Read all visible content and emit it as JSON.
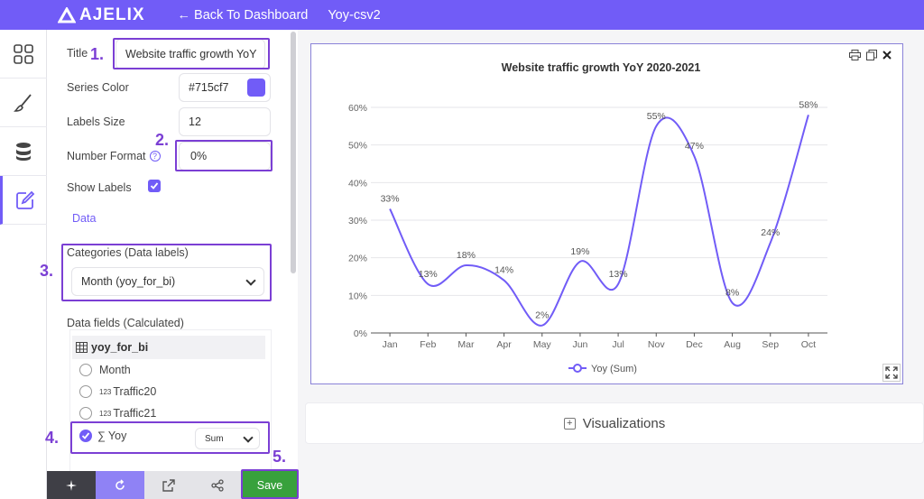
{
  "header": {
    "logo_text": "AJELIX",
    "back_label": "← Back To Dashboard",
    "file_name": "Yoy-csv2"
  },
  "rail": {
    "items": [
      {
        "icon": "grid-icon"
      },
      {
        "icon": "brush-icon"
      },
      {
        "icon": "database-icon"
      },
      {
        "icon": "edit-icon"
      }
    ]
  },
  "settings": {
    "title_label": "Title",
    "title_value": "Website traffic growth YoY",
    "series_color_label": "Series Color",
    "series_color_value": "#715cf7",
    "labels_size_label": "Labels Size",
    "labels_size_value": "12",
    "number_format_label": "Number Format",
    "number_format_value": "0%",
    "show_labels_label": "Show Labels",
    "data_tab_label": "Data",
    "categories_label": "Categories (Data labels)",
    "categories_value": "Month (yoy_for_bi)",
    "data_fields_label": "Data fields (Calculated)",
    "table_name": "yoy_for_bi",
    "fields": [
      {
        "prefix": "",
        "name": "Month"
      },
      {
        "prefix": "123",
        "name": "Traffic20"
      },
      {
        "prefix": "123",
        "name": "Traffic21"
      }
    ],
    "selected_field": {
      "prefix": "∑",
      "name": "Yoy",
      "agg": "Sum"
    }
  },
  "steps": [
    "1.",
    "2.",
    "3.",
    "4.",
    "5."
  ],
  "toolbar": {
    "save_label": "Save"
  },
  "visualizations_label": "Visualizations",
  "colors": {
    "accent": "#715cf7",
    "highlight": "#7b3fd4",
    "save": "#38a13c"
  },
  "chart_data": {
    "type": "line",
    "title": "Website traffic growth YoY 2020-2021",
    "categories": [
      "Jan",
      "Feb",
      "Mar",
      "Apr",
      "May",
      "Jun",
      "Jul",
      "Nov",
      "Dec",
      "Aug",
      "Sep",
      "Oct"
    ],
    "series": [
      {
        "name": "Yoy (Sum)",
        "values": [
          0.33,
          0.13,
          0.18,
          0.14,
          0.02,
          0.19,
          0.13,
          0.55,
          0.47,
          0.08,
          0.24,
          0.58
        ]
      }
    ],
    "data_labels": [
      "33%",
      "13%",
      "18%",
      "14%",
      "2%",
      "19%",
      "13%",
      "55%",
      "47%",
      "8%",
      "24%",
      "58%"
    ],
    "y_ticks": [
      "0%",
      "10%",
      "20%",
      "30%",
      "40%",
      "50%",
      "60%"
    ],
    "ylim": [
      0,
      0.6
    ],
    "grid": true,
    "legend": "bottom"
  }
}
